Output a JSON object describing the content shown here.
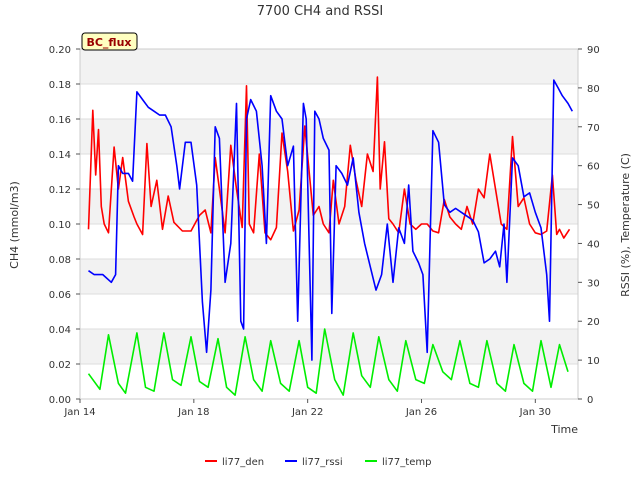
{
  "chart_data": {
    "type": "line",
    "title": "7700 CH4 and RSSI",
    "badge": "BC_flux",
    "xlabel": "Time",
    "ylabel": "CH4 (mmol/m3)",
    "y2label": "RSSI (%), Temperature (C)",
    "x_unit": "day of January",
    "xlim": [
      14.0,
      31.5
    ],
    "ylim": [
      0.0,
      0.2
    ],
    "y2lim": [
      0,
      90
    ],
    "xticks": [
      {
        "v": 14,
        "label": "Jan 14"
      },
      {
        "v": 18,
        "label": "Jan 18"
      },
      {
        "v": 22,
        "label": "Jan 22"
      },
      {
        "v": 26,
        "label": "Jan 26"
      },
      {
        "v": 30,
        "label": "Jan 30"
      }
    ],
    "yticks": [
      {
        "v": 0.0,
        "label": "0.00"
      },
      {
        "v": 0.02,
        "label": "0.02"
      },
      {
        "v": 0.04,
        "label": "0.04"
      },
      {
        "v": 0.06,
        "label": "0.06"
      },
      {
        "v": 0.08,
        "label": "0.08"
      },
      {
        "v": 0.1,
        "label": "0.10"
      },
      {
        "v": 0.12,
        "label": "0.12"
      },
      {
        "v": 0.14,
        "label": "0.14"
      },
      {
        "v": 0.16,
        "label": "0.16"
      },
      {
        "v": 0.18,
        "label": "0.18"
      },
      {
        "v": 0.2,
        "label": "0.20"
      }
    ],
    "y2ticks": [
      {
        "v": 0,
        "label": "0"
      },
      {
        "v": 10,
        "label": "10"
      },
      {
        "v": 20,
        "label": "20"
      },
      {
        "v": 30,
        "label": "30"
      },
      {
        "v": 40,
        "label": "40"
      },
      {
        "v": 50,
        "label": "50"
      },
      {
        "v": 60,
        "label": "60"
      },
      {
        "v": 70,
        "label": "70"
      },
      {
        "v": 80,
        "label": "80"
      },
      {
        "v": 90,
        "label": "90"
      }
    ],
    "legend_position": "bottom",
    "series": [
      {
        "name": "li77_den",
        "color": "#ff0000",
        "axis": "left",
        "x": [
          14.3,
          14.45,
          14.55,
          14.65,
          14.75,
          14.85,
          15.0,
          15.2,
          15.35,
          15.5,
          15.7,
          15.9,
          16.0,
          16.2,
          16.35,
          16.5,
          16.7,
          16.9,
          17.1,
          17.3,
          17.6,
          17.9,
          18.2,
          18.4,
          18.6,
          18.75,
          18.9,
          19.1,
          19.3,
          19.5,
          19.7,
          19.85,
          19.95,
          20.1,
          20.3,
          20.5,
          20.7,
          20.9,
          21.1,
          21.3,
          21.5,
          21.7,
          21.9,
          22.2,
          22.4,
          22.55,
          22.75,
          22.9,
          23.1,
          23.3,
          23.5,
          23.7,
          23.9,
          24.1,
          24.3,
          24.45,
          24.55,
          24.7,
          24.85,
          25.0,
          25.2,
          25.4,
          25.6,
          25.8,
          26.0,
          26.2,
          26.4,
          26.6,
          26.8,
          27.0,
          27.2,
          27.4,
          27.6,
          27.8,
          28.0,
          28.2,
          28.4,
          28.6,
          28.8,
          29.0,
          29.2,
          29.4,
          29.6,
          29.8,
          30.0,
          30.2,
          30.4,
          30.6,
          30.75,
          30.85,
          31.0,
          31.2
        ],
        "values": [
          0.097,
          0.165,
          0.128,
          0.154,
          0.11,
          0.1,
          0.095,
          0.144,
          0.12,
          0.138,
          0.113,
          0.104,
          0.1,
          0.094,
          0.146,
          0.11,
          0.125,
          0.097,
          0.116,
          0.101,
          0.096,
          0.096,
          0.105,
          0.108,
          0.095,
          0.138,
          0.12,
          0.095,
          0.145,
          0.12,
          0.098,
          0.179,
          0.1,
          0.095,
          0.14,
          0.095,
          0.091,
          0.098,
          0.152,
          0.13,
          0.096,
          0.108,
          0.156,
          0.105,
          0.11,
          0.1,
          0.095,
          0.125,
          0.1,
          0.11,
          0.145,
          0.125,
          0.11,
          0.14,
          0.13,
          0.184,
          0.12,
          0.147,
          0.103,
          0.1,
          0.095,
          0.12,
          0.1,
          0.097,
          0.1,
          0.1,
          0.096,
          0.095,
          0.114,
          0.104,
          0.1,
          0.097,
          0.11,
          0.1,
          0.12,
          0.115,
          0.14,
          0.12,
          0.1,
          0.097,
          0.15,
          0.11,
          0.115,
          0.1,
          0.095,
          0.094,
          0.096,
          0.128,
          0.094,
          0.097,
          0.092,
          0.097
        ]
      },
      {
        "name": "li77_rssi",
        "color": "#0000ff",
        "axis": "right",
        "x": [
          14.3,
          14.5,
          14.8,
          15.1,
          15.25,
          15.35,
          15.5,
          15.7,
          15.85,
          16.0,
          16.2,
          16.4,
          16.6,
          16.8,
          17.0,
          17.2,
          17.4,
          17.5,
          17.7,
          17.9,
          18.1,
          18.3,
          18.45,
          18.6,
          18.75,
          18.9,
          19.1,
          19.3,
          19.5,
          19.65,
          19.75,
          19.85,
          20.0,
          20.2,
          20.4,
          20.55,
          20.7,
          20.9,
          21.1,
          21.3,
          21.5,
          21.65,
          21.85,
          21.95,
          22.15,
          22.25,
          22.4,
          22.55,
          22.75,
          22.85,
          23.0,
          23.2,
          23.4,
          23.6,
          23.8,
          24.0,
          24.2,
          24.4,
          24.6,
          24.8,
          25.0,
          25.2,
          25.4,
          25.55,
          25.7,
          25.9,
          26.05,
          26.2,
          26.4,
          26.6,
          26.8,
          27.0,
          27.2,
          27.4,
          27.6,
          27.8,
          28.0,
          28.2,
          28.4,
          28.6,
          28.75,
          28.9,
          29.0,
          29.2,
          29.4,
          29.6,
          29.8,
          30.0,
          30.2,
          30.4,
          30.5,
          30.65,
          30.8,
          30.95,
          31.15,
          31.3
        ],
        "values": [
          33,
          32,
          32,
          30,
          32,
          60,
          58,
          58,
          56,
          79,
          77,
          75,
          74,
          73,
          73,
          70,
          60,
          54,
          66,
          66,
          55,
          25,
          12,
          28,
          70,
          67,
          30,
          40,
          76,
          20,
          18,
          72,
          77,
          74,
          60,
          40,
          78,
          74,
          72,
          60,
          65,
          20,
          76,
          72,
          10,
          74,
          72,
          67,
          64,
          22,
          60,
          58,
          55,
          62,
          48,
          40,
          34,
          28,
          32,
          45,
          30,
          44,
          40,
          55,
          38,
          35,
          32,
          12,
          69,
          66,
          50,
          48,
          49,
          48,
          47,
          46,
          43,
          35,
          36,
          38,
          34,
          45,
          30,
          62,
          60,
          52,
          53,
          48,
          44,
          32,
          20,
          82,
          80,
          78,
          76,
          74
        ]
      },
      {
        "name": "li77_temp",
        "color": "#00ee00",
        "axis": "right",
        "x": [
          14.3,
          14.7,
          15.0,
          15.35,
          15.6,
          16.0,
          16.3,
          16.6,
          16.95,
          17.25,
          17.55,
          17.9,
          18.2,
          18.5,
          18.85,
          19.15,
          19.45,
          19.8,
          20.1,
          20.4,
          20.7,
          21.05,
          21.35,
          21.7,
          22.0,
          22.3,
          22.6,
          22.95,
          23.25,
          23.6,
          23.9,
          24.2,
          24.5,
          24.85,
          25.15,
          25.45,
          25.8,
          26.1,
          26.4,
          26.75,
          27.05,
          27.35,
          27.7,
          28.0,
          28.3,
          28.65,
          28.95,
          29.25,
          29.6,
          29.9,
          30.2,
          30.55,
          30.85,
          31.15
        ],
        "values": [
          6.5,
          2.5,
          16.5,
          4,
          1.5,
          17,
          3,
          2,
          17,
          5,
          3.5,
          16,
          4.5,
          3,
          15.5,
          3,
          1,
          16,
          5,
          2,
          15,
          4,
          2,
          15,
          3,
          1.5,
          18,
          5,
          1,
          17,
          6,
          3,
          16,
          5,
          2,
          15,
          5,
          4,
          14,
          7,
          5,
          15,
          4,
          3,
          15,
          4,
          2,
          14,
          4,
          2,
          15,
          3,
          14,
          7
        ]
      }
    ]
  }
}
